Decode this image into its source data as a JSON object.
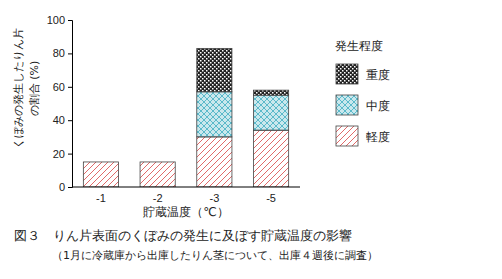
{
  "chart_data": {
    "type": "bar",
    "stacked": true,
    "title": "図３　りん片表面のくぼみの発生に及ぼす貯蔵温度の影響",
    "subtitle": "（1月に冷蔵庫から出庫したりん茎について、出庫４週後に調査）",
    "x_label": "貯蔵温度（℃）",
    "y_label": [
      "くぼみの発生したりん片",
      "の割合 (%)"
    ],
    "legend_title": "発生程度",
    "legend": "right",
    "categories": [
      "-1",
      "-2",
      "-3",
      "-5"
    ],
    "series": [
      {
        "name": "軽度",
        "color": "#e06a6a",
        "values": [
          15,
          15,
          30,
          34
        ]
      },
      {
        "name": "中度",
        "color": "#4fb3c6",
        "values": [
          0,
          0,
          27,
          21
        ]
      },
      {
        "name": "重度",
        "color": "#222222",
        "values": [
          0,
          0,
          26,
          3
        ]
      }
    ],
    "ylim": [
      0,
      100
    ],
    "yticks": [
      0,
      20,
      40,
      60,
      80,
      100
    ]
  }
}
